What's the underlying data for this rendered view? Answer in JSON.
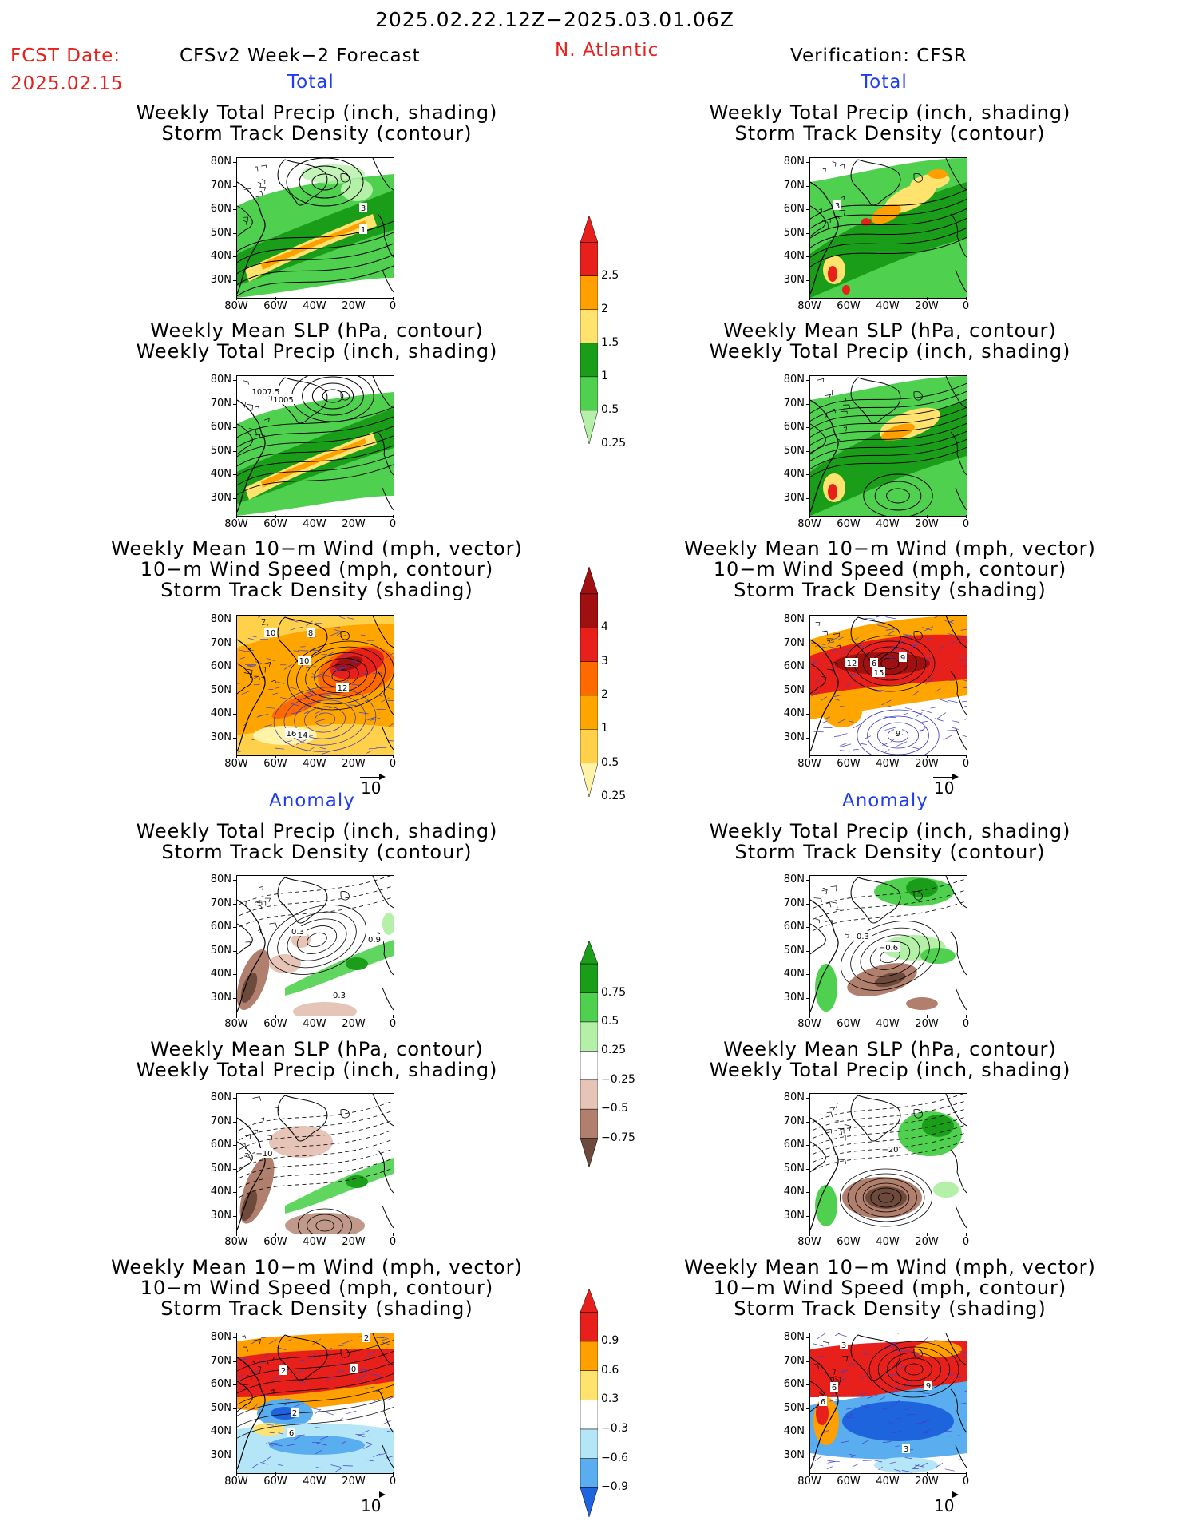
{
  "header": {
    "period": "2025.02.22.12Z−2025.03.01.06Z",
    "fcst_date_label": "FCST Date:",
    "fcst_date": "2025.02.15",
    "model": "CFSv2 Week−2 Forecast",
    "region": "N. Atlantic",
    "verification": "Verification: CFSR"
  },
  "sections": {
    "total": "Total",
    "anomaly": "Anomaly"
  },
  "titles": {
    "precip_track": [
      "Weekly Total Precip (inch, shading)",
      "Storm Track Density (contour)"
    ],
    "slp_precip": [
      "Weekly Mean SLP (hPa, contour)",
      "Weekly Total Precip (inch, shading)"
    ],
    "wind_track": [
      "Weekly Mean 10−m Wind (mph, vector)",
      "10−m Wind Speed (mph, contour)",
      "Storm Track Density (shading)"
    ]
  },
  "axes": {
    "lat": [
      "80N",
      "70N",
      "60N",
      "50N",
      "40N",
      "30N"
    ],
    "lon": [
      "80W",
      "60W",
      "40W",
      "20W",
      "0"
    ]
  },
  "ref_vector": "10",
  "colorbars": {
    "precip_total": {
      "labels": [
        "2.5",
        "2",
        "1.5",
        "1",
        "0.5",
        "0.25"
      ],
      "colors": [
        "#e8201c",
        "#ff9f00",
        "#ffe36e",
        "#1a9e1a",
        "#4fd14f",
        "#b4f0a8"
      ]
    },
    "track_total": {
      "labels": [
        "4",
        "3",
        "2",
        "1",
        "0.5",
        "0.25"
      ],
      "colors": [
        "#a01010",
        "#e8201c",
        "#ff6a00",
        "#ffa500",
        "#ffd14a",
        "#fff3a8"
      ]
    },
    "precip_anom": {
      "labels": [
        "0.75",
        "0.5",
        "0.25",
        "−0.25",
        "−0.5",
        "−0.75"
      ],
      "colors": [
        "#1a9e1a",
        "#4fd14f",
        "#b4f0a8",
        "#ffffff",
        "#e6c4b8",
        "#b07f6e",
        "#6e4a3c"
      ]
    },
    "track_anom": {
      "labels": [
        "0.9",
        "0.6",
        "0.3",
        "−0.3",
        "−0.6",
        "−0.9"
      ],
      "colors": [
        "#e8201c",
        "#ff9f00",
        "#ffe36e",
        "#ffffff",
        "#b4e6f8",
        "#5aaef0",
        "#1e64dc"
      ]
    }
  },
  "contour_labels": {
    "p1L": [
      "3",
      "1"
    ],
    "p1R": [
      "3"
    ],
    "p2L": [
      "1007.5",
      "1005"
    ],
    "p3L": [
      "10",
      "8",
      "10",
      "12",
      "16",
      "14"
    ],
    "p3R": [
      "12",
      "6",
      "9",
      "15",
      "9"
    ],
    "p4L": [
      "0.3",
      "0.9",
      "0.3"
    ],
    "p4R": [
      "0.3",
      "−0.6"
    ],
    "p5L": [
      "−10"
    ],
    "p5R": [
      "−20"
    ],
    "p6L": [
      "2",
      "2",
      "0",
      "2",
      "6"
    ],
    "p6R": [
      "3",
      "9",
      "6",
      "6",
      "3"
    ]
  }
}
